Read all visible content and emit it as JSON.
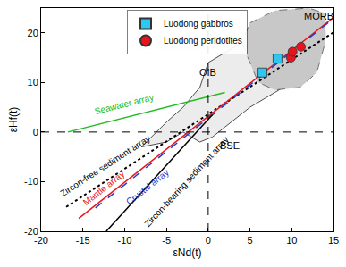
{
  "chart_data": {
    "type": "scatter",
    "x_label": "εNd(t)",
    "y_label": "εHf(t)",
    "xlim": [
      -20,
      15
    ],
    "xticks": [
      -20,
      -15,
      -10,
      -5,
      0,
      5,
      10,
      15
    ],
    "ylim": [
      -20,
      25
    ],
    "yticks": [
      -20,
      -10,
      0,
      10,
      20
    ],
    "grid": false,
    "legend": "top",
    "series": [
      {
        "name": "Luodong gabbros",
        "color": "#2ec7f0",
        "marker": "square",
        "x": [
          6.5,
          8.3
        ],
        "y": [
          12,
          14.8
        ]
      },
      {
        "name": "Luodong peridotites",
        "color": "#e8141c",
        "marker": "circle",
        "x": [
          9.9,
          10.1,
          11.1
        ],
        "y": [
          15,
          16.2,
          17.2
        ]
      }
    ],
    "fields": [
      {
        "label": "OIB",
        "label_x": 0,
        "label_y": 12,
        "color": "#ececec",
        "line_color": "#222222",
        "line_style": "solid",
        "x": [
          -8,
          -5,
          -3,
          -1,
          0,
          3,
          5,
          9,
          12,
          13,
          11,
          8,
          5,
          2,
          0.5,
          -1,
          -3,
          -5,
          -8
        ],
        "y": [
          -3,
          2,
          5,
          9,
          14,
          17,
          19,
          20,
          17,
          15,
          11,
          8,
          5,
          1,
          -1,
          -2,
          0,
          -2,
          -3
        ]
      },
      {
        "label": "MORB",
        "label_x": 13.2,
        "label_y": 23.3,
        "color": "#c8c8c8",
        "line_color": "#555555",
        "line_style": "dash",
        "x": [
          5,
          8,
          12,
          14,
          14,
          13,
          11,
          8,
          6,
          5,
          4,
          5
        ],
        "y": [
          22,
          24.5,
          25,
          24,
          18,
          12,
          9,
          8.5,
          10,
          14,
          18,
          22
        ]
      }
    ],
    "arrays": [
      {
        "name": "Seawater array",
        "color": "#22bb22",
        "line_style": "solid",
        "x": [
          -16.8,
          2
        ],
        "y": [
          0,
          8
        ],
        "label_x": -10,
        "label_y": 5.6
      },
      {
        "name": "Zircon-free sediment array",
        "color": "#000000",
        "line_style": "dot",
        "x": [
          -17,
          15
        ],
        "y": [
          -15.1,
          20.1
        ],
        "label_x": -12.3,
        "label_y": -6.8
      },
      {
        "name": "Mantle array",
        "color": "#e8141c",
        "line_style": "solid",
        "x": [
          -15.5,
          15
        ],
        "y": [
          -17.4,
          23.1
        ],
        "label_x": -12.5,
        "label_y": -11.2
      },
      {
        "name": "Crustal array",
        "color": "#1f3fd0",
        "line_style": "dash",
        "x": [
          -13.5,
          15
        ],
        "y": [
          -15.3,
          22.9
        ],
        "label_x": -7.3,
        "label_y": -11
      },
      {
        "name": "Zircon-bearing sediment array",
        "color": "#000000",
        "line_style": "solid",
        "x": [
          -12.2,
          0.5
        ],
        "y": [
          -20,
          3.5
        ],
        "label_x": -2.6,
        "label_y": -10
      }
    ],
    "reference_lines": [
      {
        "axis": "x",
        "value": 0
      },
      {
        "axis": "y",
        "value": 0
      }
    ],
    "annotations": [
      {
        "text": "BSE",
        "x": 2.6,
        "y": -2.8
      }
    ]
  }
}
